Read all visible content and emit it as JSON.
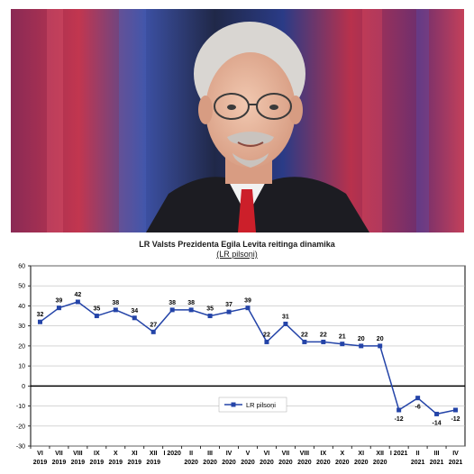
{
  "photo": {
    "subject_icon": "portrait-photo",
    "colors": {
      "bg_red": "#b8314c",
      "bg_blue": "#2d4fa8",
      "bg_dark": "#1a1e3a",
      "suit": "#1c1c22",
      "tie": "#cc1f2a",
      "shirt": "#f2f2f2",
      "skin": "#e8b9a0",
      "hair": "#d9d6d2"
    }
  },
  "chart_data": {
    "type": "line",
    "title": "LR Valsts Prezidenta Egila Levita reitinga dinamika",
    "subtitle": "(LR pilsoņi)",
    "ylim": [
      -30,
      60
    ],
    "yticks": [
      -30,
      -20,
      -10,
      0,
      10,
      20,
      30,
      40,
      50,
      60
    ],
    "grid": true,
    "legend_position": "center-right",
    "series_color": "#2444a8",
    "categories": [
      [
        "VI",
        "2019"
      ],
      [
        "VII",
        "2019"
      ],
      [
        "VIII",
        "2019"
      ],
      [
        "IX",
        "2019"
      ],
      [
        "X",
        "2019"
      ],
      [
        "XI",
        "2019"
      ],
      [
        "XII",
        "2019"
      ],
      [
        "I 2020",
        ""
      ],
      [
        "II",
        "2020"
      ],
      [
        "III",
        "2020"
      ],
      [
        "IV",
        "2020"
      ],
      [
        "V",
        "2020"
      ],
      [
        "VI",
        "2020"
      ],
      [
        "VII",
        "2020"
      ],
      [
        "VIII",
        "2020"
      ],
      [
        "IX",
        "2020"
      ],
      [
        "X",
        "2020"
      ],
      [
        "XI",
        "2020"
      ],
      [
        "XII",
        "2020"
      ],
      [
        "I 2021",
        ""
      ],
      [
        "II",
        "2021"
      ],
      [
        "III",
        "2021"
      ],
      [
        "IV",
        "2021"
      ]
    ],
    "series": [
      {
        "name": "LR pilsoņi",
        "values": [
          32,
          39,
          42,
          35,
          38,
          34,
          27,
          38,
          38,
          35,
          37,
          39,
          22,
          31,
          22,
          22,
          21,
          20,
          20,
          -12,
          -6,
          -14,
          -12
        ]
      }
    ]
  }
}
